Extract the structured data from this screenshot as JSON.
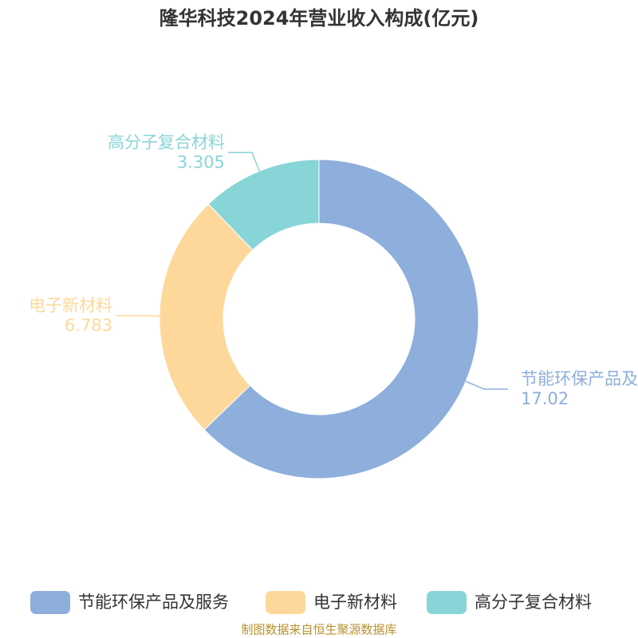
{
  "chart_data": {
    "type": "pie",
    "title": "隆华科技2024年营业收入构成(亿元)",
    "categories": [
      "节能环保产品及服务",
      "电子新材料",
      "高分子复合材料"
    ],
    "values": [
      17.02,
      6.783,
      3.305
    ],
    "colors": [
      "#8eaedb",
      "#fed89a",
      "#88d5d8"
    ],
    "source": "制图数据来自恒生聚源数据库"
  }
}
